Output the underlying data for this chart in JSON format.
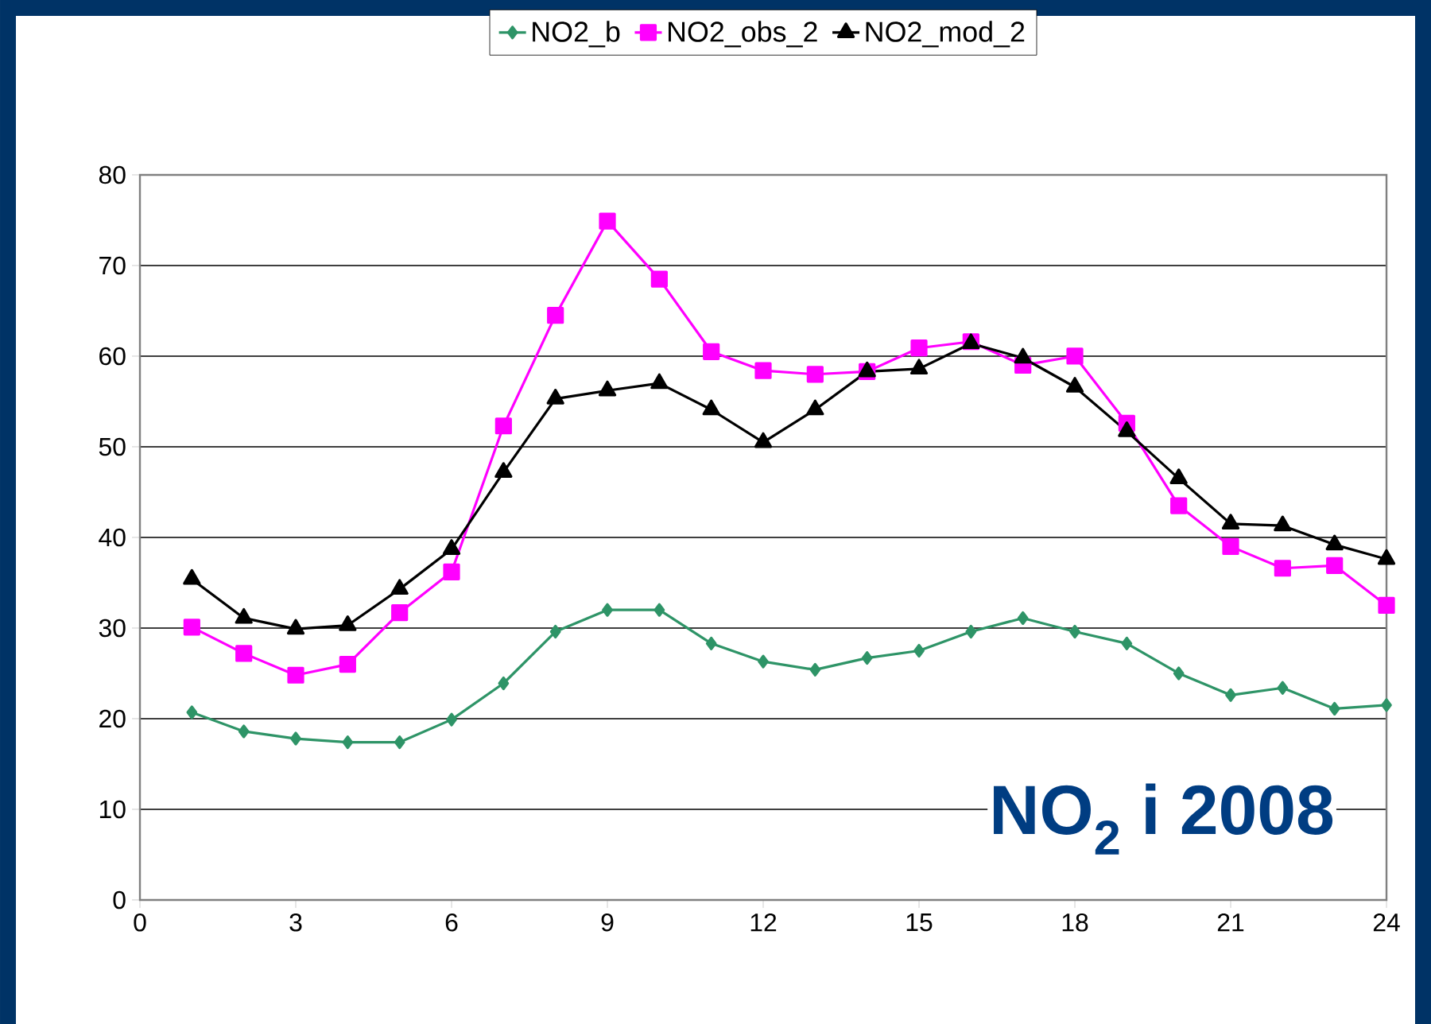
{
  "chart_data": {
    "type": "line",
    "x": [
      1,
      2,
      3,
      4,
      5,
      6,
      7,
      8,
      9,
      10,
      11,
      12,
      13,
      14,
      15,
      16,
      17,
      18,
      19,
      20,
      21,
      22,
      23,
      24
    ],
    "series": [
      {
        "name": "NO2_b",
        "color": "#2e9467",
        "marker": "diamond",
        "values": [
          20.7,
          18.6,
          17.8,
          17.4,
          17.4,
          19.9,
          23.9,
          29.6,
          32,
          32,
          28.3,
          26.3,
          25.4,
          26.7,
          27.5,
          29.6,
          31.1,
          29.6,
          28.3,
          25,
          22.6,
          23.4,
          21.1,
          21.5
        ]
      },
      {
        "name": "NO2_obs_2",
        "color": "#ff00ff",
        "marker": "square",
        "values": [
          30.1,
          27.2,
          24.8,
          26,
          31.7,
          36.2,
          52.3,
          64.5,
          74.9,
          68.5,
          60.5,
          58.4,
          58,
          58.3,
          60.9,
          61.6,
          59,
          60,
          52.6,
          43.5,
          39,
          36.6,
          36.9,
          32.5
        ]
      },
      {
        "name": "NO2_mod_2",
        "color": "#000000",
        "marker": "triangle",
        "values": [
          35.4,
          31.1,
          29.9,
          30.3,
          34.3,
          38.7,
          47.2,
          55.3,
          56.2,
          57,
          54.1,
          50.5,
          54.1,
          58.3,
          58.6,
          61.4,
          59.8,
          56.6,
          51.7,
          46.5,
          41.5,
          41.3,
          39.2,
          37.6
        ]
      }
    ],
    "xlim": [
      0,
      24
    ],
    "xticks": [
      0,
      3,
      6,
      9,
      12,
      15,
      18,
      21,
      24
    ],
    "ylim": [
      0,
      80
    ],
    "yticks": [
      0,
      10,
      20,
      30,
      40,
      50,
      60,
      70,
      80
    ],
    "grid": "y",
    "legend": "top",
    "line_style": "solid",
    "annotations": [
      "NO$_{2}$ i 2008"
    ]
  }
}
